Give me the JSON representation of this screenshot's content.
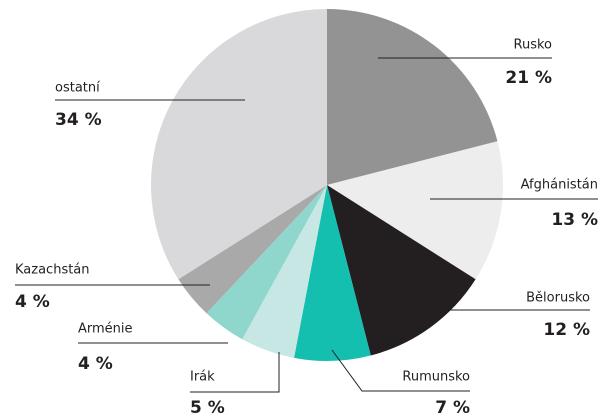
{
  "chart_data": {
    "type": "pie",
    "categories": [
      "Rusko",
      "Afghánistán",
      "Bělorusko",
      "Rumunsko",
      "Irák",
      "Arménie",
      "Kazachstán",
      "ostatní"
    ],
    "values": [
      21,
      13,
      12,
      7,
      5,
      4,
      4,
      34
    ],
    "value_labels": [
      "21 %",
      "13 %",
      "12 %",
      "7 %",
      "5 %",
      "4 %",
      "4 %",
      "34 %"
    ],
    "colors": [
      "#939393",
      "#ededed",
      "#231f20",
      "#14bfb0",
      "#c6e7e3",
      "#8fd6cc",
      "#a9a9a9",
      "#d9d9db"
    ]
  }
}
